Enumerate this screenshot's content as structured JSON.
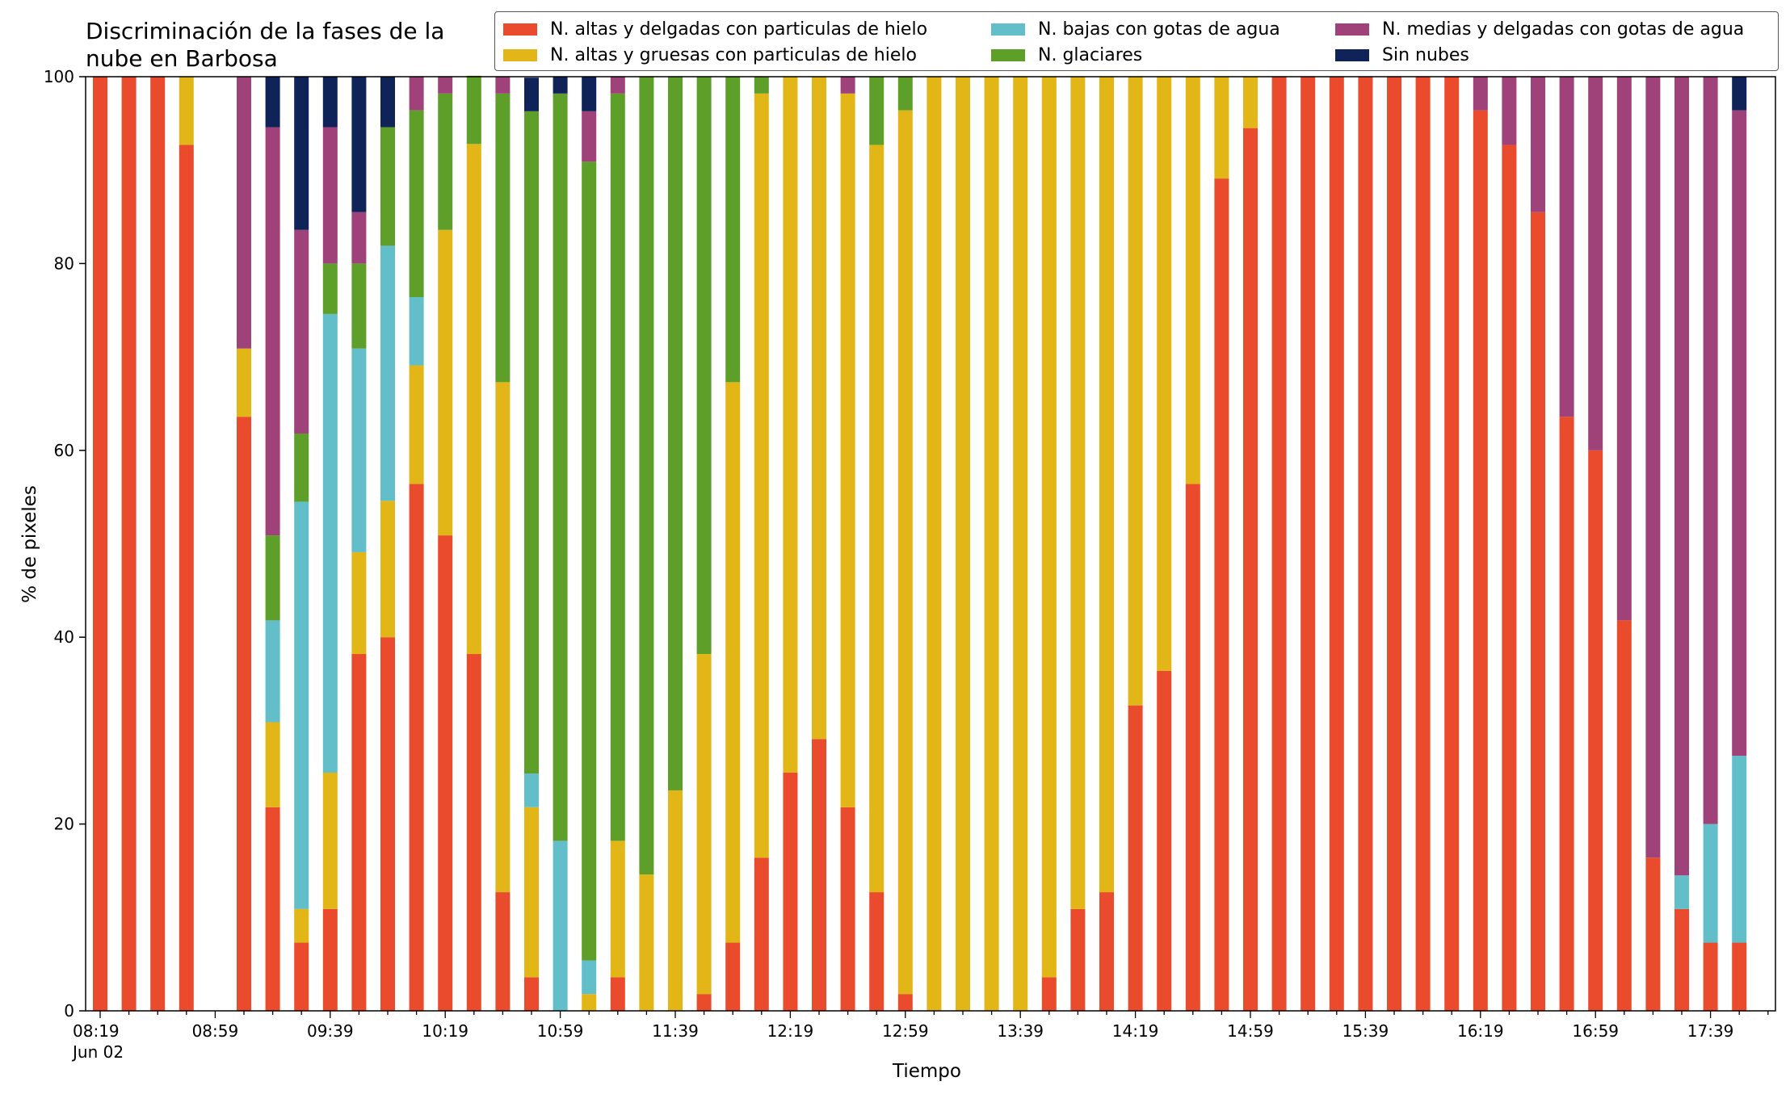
{
  "chart_data": {
    "type": "bar",
    "stacked": true,
    "title": "Discriminación de la fases de la nube en Barbosa",
    "xlabel": "Tiempo",
    "ylabel": "% de pixeles",
    "ylim": [
      0,
      100
    ],
    "yticks": [
      0,
      20,
      40,
      60,
      80,
      100
    ],
    "xtick_labels": [
      "08:19\nJun 02",
      "08:59",
      "09:39",
      "10:19",
      "10:59",
      "11:39",
      "12:19",
      "12:59",
      "13:39",
      "14:19",
      "14:59",
      "15:39",
      "16:19",
      "16:59",
      "17:39"
    ],
    "legend_position": "top-right",
    "categories": [
      "08:19",
      "08:29",
      "08:39",
      "08:49",
      "08:59",
      "09:09",
      "09:19",
      "09:29",
      "09:39",
      "09:49",
      "09:59",
      "10:09",
      "10:19",
      "10:29",
      "10:39",
      "10:49",
      "10:59",
      "11:09",
      "11:19",
      "11:29",
      "11:39",
      "11:49",
      "11:59",
      "12:09",
      "12:19",
      "12:29",
      "12:39",
      "12:49",
      "12:59",
      "13:09",
      "13:19",
      "13:29",
      "13:39",
      "13:49",
      "13:59",
      "14:09",
      "14:19",
      "14:29",
      "14:39",
      "14:49",
      "14:59",
      "15:09",
      "15:19",
      "15:29",
      "15:39",
      "15:49",
      "15:59",
      "16:09",
      "16:19",
      "16:29",
      "16:39",
      "16:49",
      "16:59",
      "17:09",
      "17:19",
      "17:29",
      "17:39",
      "17:49"
    ],
    "series": [
      {
        "name": "N. altas y delgadas con particulas de hielo",
        "color": "#ea4b2c",
        "values": [
          100,
          100,
          100,
          92.7,
          0,
          63.6,
          21.8,
          7.3,
          10.9,
          38.2,
          40,
          56.4,
          50.9,
          38.2,
          12.7,
          3.6,
          0,
          0,
          3.6,
          0,
          0,
          1.8,
          7.3,
          16.4,
          25.5,
          29.1,
          21.8,
          12.7,
          1.8,
          0,
          0,
          0,
          0,
          3.6,
          10.9,
          12.7,
          32.7,
          36.4,
          56.4,
          89.1,
          94.5,
          100,
          100,
          100,
          100,
          100,
          100,
          100,
          96.4,
          92.7,
          85.5,
          63.6,
          60,
          41.8,
          16.4,
          10.9,
          7.3,
          7.3
        ]
      },
      {
        "name": "N. altas y gruesas con particulas de hielo",
        "color": "#e3b618",
        "values": [
          0,
          0,
          0,
          7.3,
          0,
          7.3,
          9.1,
          3.6,
          14.6,
          10.9,
          14.6,
          12.7,
          32.7,
          54.6,
          54.6,
          18.2,
          0,
          1.8,
          14.6,
          14.6,
          23.6,
          36.4,
          60,
          81.8,
          74.5,
          70.9,
          76.4,
          80,
          94.6,
          100,
          100,
          100,
          100,
          96.4,
          89.1,
          87.3,
          67.3,
          63.6,
          43.6,
          10.9,
          5.5,
          0,
          0,
          0,
          0,
          0,
          0,
          0,
          0,
          0,
          0,
          0,
          0,
          0,
          0,
          0,
          0,
          0
        ]
      },
      {
        "name": "N. bajas con gotas de agua",
        "color": "#62bfca",
        "values": [
          0,
          0,
          0,
          0,
          0,
          0,
          10.9,
          43.6,
          49.1,
          21.8,
          27.3,
          7.3,
          0,
          0,
          0,
          3.6,
          18.2,
          3.6,
          0,
          0,
          0,
          0,
          0,
          0,
          0,
          0,
          0,
          0,
          0,
          0,
          0,
          0,
          0,
          0,
          0,
          0,
          0,
          0,
          0,
          0,
          0,
          0,
          0,
          0,
          0,
          0,
          0,
          0,
          0,
          0,
          0,
          0,
          0,
          0,
          0,
          3.6,
          12.7,
          20
        ]
      },
      {
        "name": "N. glaciares",
        "color": "#5e9f2a",
        "values": [
          0,
          0,
          0,
          0,
          0,
          0,
          9.1,
          7.3,
          5.4,
          9.1,
          12.7,
          20,
          14.6,
          7.3,
          30.9,
          70.9,
          80,
          85.5,
          80,
          85.4,
          76.4,
          61.8,
          32.7,
          1.8,
          0,
          0,
          0,
          7.3,
          3.6,
          0,
          0,
          0,
          0,
          0,
          0,
          0,
          0,
          0,
          0,
          0,
          0,
          0,
          0,
          0,
          0,
          0,
          0,
          0,
          0,
          0,
          0,
          0,
          0,
          0,
          0,
          0,
          0,
          0
        ]
      },
      {
        "name": "N. medias y delgadas con gotas de agua",
        "color": "#9e4279",
        "values": [
          0,
          0,
          0,
          0,
          0,
          29.1,
          43.7,
          21.8,
          14.6,
          5.5,
          0,
          3.6,
          1.8,
          0,
          1.8,
          0,
          0,
          5.4,
          1.8,
          0,
          0,
          0,
          0,
          0,
          0,
          0,
          1.8,
          0,
          0,
          0,
          0,
          0,
          0,
          0,
          0,
          0,
          0,
          0,
          0,
          0,
          0,
          0,
          0,
          0,
          0,
          0,
          0,
          0,
          3.6,
          7.3,
          14.5,
          36.4,
          40,
          58.2,
          83.6,
          85.5,
          80,
          69.1
        ]
      },
      {
        "name": "Sin nubes",
        "color": "#0f2359",
        "values": [
          0,
          0,
          0,
          0,
          0,
          0,
          5.4,
          16.4,
          5.4,
          14.5,
          5.4,
          0,
          0,
          0,
          0,
          3.6,
          1.8,
          3.7,
          0,
          0,
          0,
          0,
          0,
          0,
          0,
          0,
          0,
          0,
          0,
          0,
          0,
          0,
          0,
          0,
          0,
          0,
          0,
          0,
          0,
          0,
          0,
          0,
          0,
          0,
          0,
          0,
          0,
          0,
          0,
          0,
          0,
          0,
          0,
          0,
          0,
          0,
          0,
          3.6
        ]
      }
    ]
  }
}
